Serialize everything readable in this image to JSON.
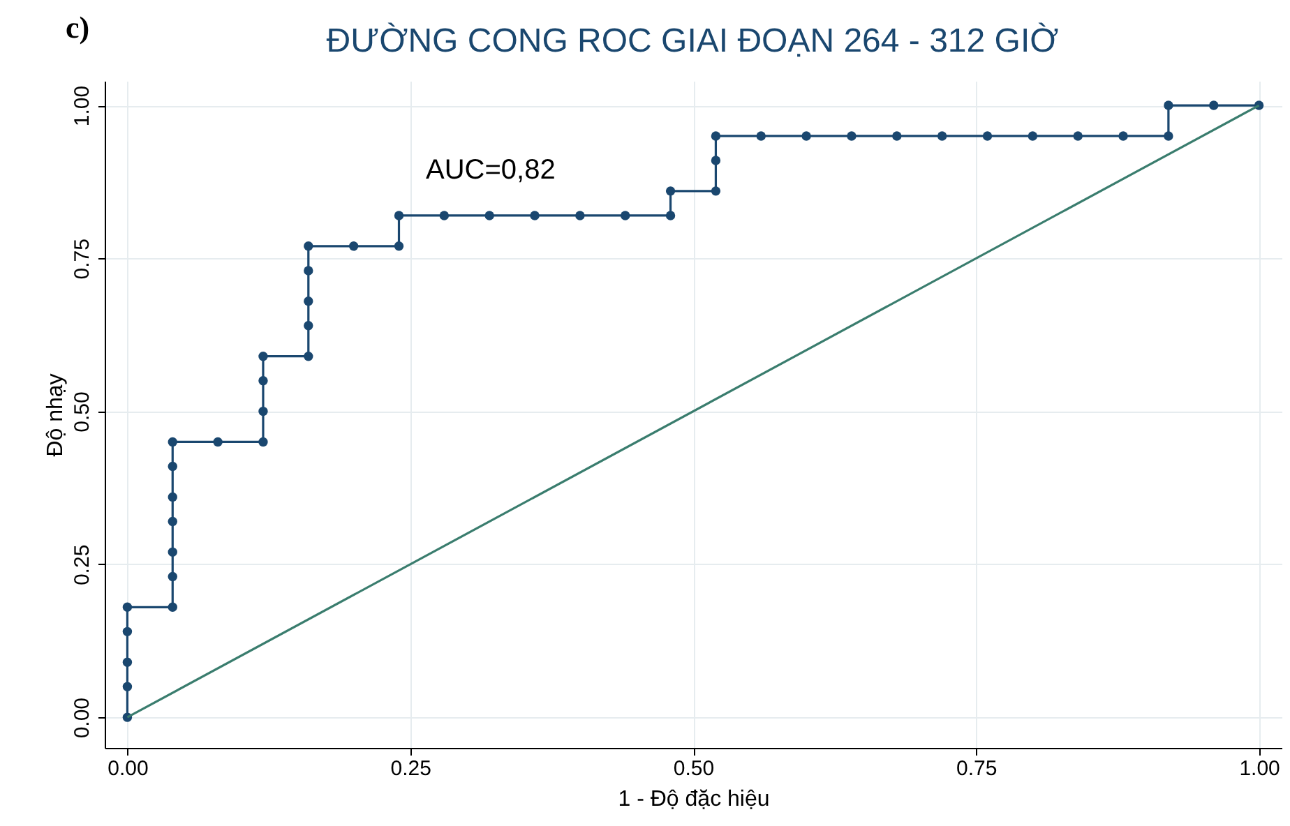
{
  "chart_data": {
    "type": "line",
    "title": "ĐƯỜNG CONG ROC GIAI ĐOẠN 264 - 312 GIỜ",
    "xlabel": "1 -  Độ đặc hiệu",
    "ylabel": "Độ nhạy",
    "annotations": [
      "c)",
      "AUC=0,82"
    ],
    "xlim": [
      -0.02,
      1.02
    ],
    "ylim": [
      -0.05,
      1.04
    ],
    "xticks": [
      {
        "value": 0,
        "label": "0.00"
      },
      {
        "value": 0.25,
        "label": "0.25"
      },
      {
        "value": 0.5,
        "label": "0.50"
      },
      {
        "value": 0.75,
        "label": "0.75"
      },
      {
        "value": 1,
        "label": "1.00"
      }
    ],
    "yticks": [
      {
        "value": 0,
        "label": "0.00"
      },
      {
        "value": 0.25,
        "label": "0.25"
      },
      {
        "value": 0.5,
        "label": "0.50"
      },
      {
        "value": 0.75,
        "label": "0.75"
      },
      {
        "value": 1,
        "label": "1.00"
      }
    ],
    "grid": true,
    "series": [
      {
        "color": "#1a476f",
        "marker": "circle",
        "x": [
          0,
          0,
          0,
          0,
          0,
          0.04,
          0.04,
          0.04,
          0.04,
          0.04,
          0.04,
          0.04,
          0.08,
          0.12,
          0.12,
          0.12,
          0.12,
          0.16,
          0.16,
          0.16,
          0.16,
          0.16,
          0.2,
          0.24,
          0.24,
          0.28,
          0.32,
          0.36,
          0.4,
          0.44,
          0.48,
          0.48,
          0.52,
          0.52,
          0.52,
          0.56,
          0.6,
          0.64,
          0.68,
          0.72,
          0.76,
          0.8,
          0.84,
          0.88,
          0.92,
          0.92,
          0.96,
          1
        ],
        "values": [
          0,
          0.05,
          0.09,
          0.14,
          0.18,
          0.18,
          0.23,
          0.27,
          0.32,
          0.36,
          0.41,
          0.45,
          0.45,
          0.45,
          0.5,
          0.55,
          0.59,
          0.59,
          0.64,
          0.68,
          0.73,
          0.77,
          0.77,
          0.77,
          0.82,
          0.82,
          0.82,
          0.82,
          0.82,
          0.82,
          0.82,
          0.86,
          0.86,
          0.91,
          0.95,
          0.95,
          0.95,
          0.95,
          0.95,
          0.95,
          0.95,
          0.95,
          0.95,
          0.95,
          0.95,
          1,
          1,
          1
        ]
      },
      {
        "color": "#3a7d6e",
        "marker": "none",
        "x": [
          0,
          1
        ],
        "values": [
          0,
          1
        ]
      }
    ]
  }
}
